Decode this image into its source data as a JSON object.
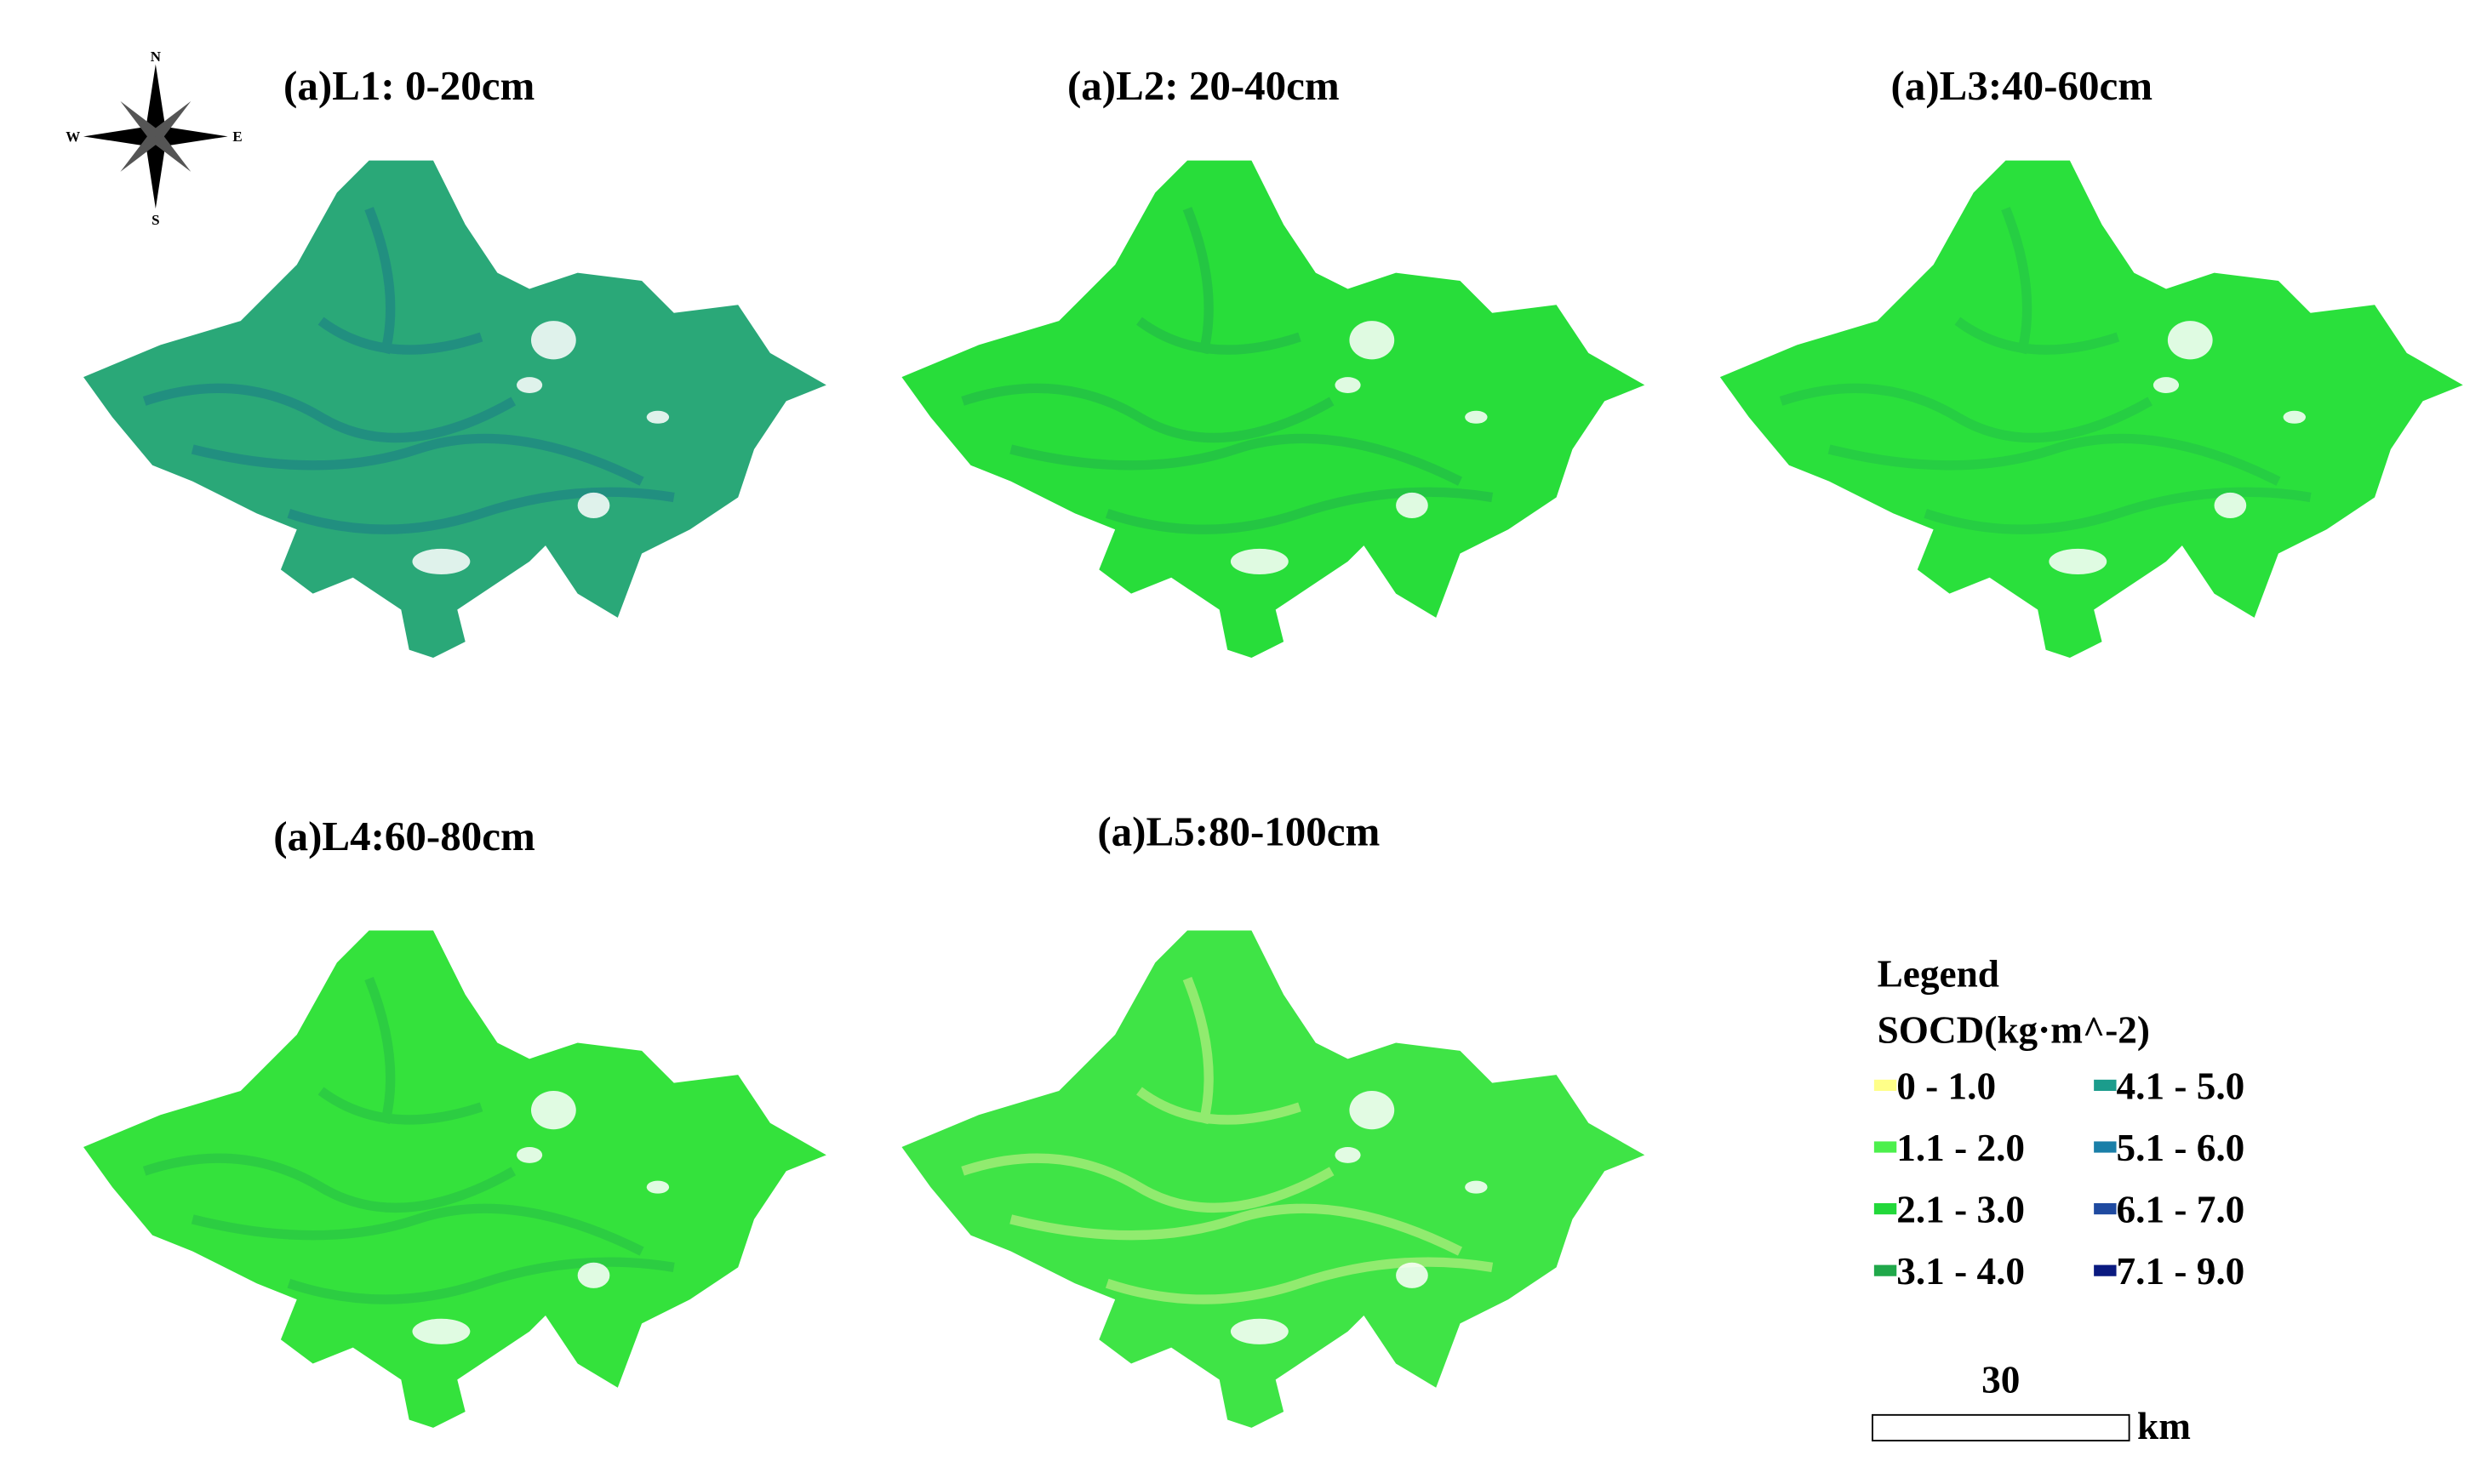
{
  "panels": [
    {
      "title": "(a)L1: 0-20cm",
      "color": "#2aa878",
      "shade": "#1d7f86"
    },
    {
      "title": "(a)L2: 20-40cm",
      "color": "#28dd3a",
      "shade": "#22b84a"
    },
    {
      "title": "(a)L3:40-60cm",
      "color": "#2ae03c",
      "shade": "#24c248"
    },
    {
      "title": "(a)L4:60-80cm",
      "color": "#34e23c",
      "shade": "#28c046"
    },
    {
      "title": "(a)L5:80-100cm",
      "color": "#3fe446",
      "shade": "#c8f08a"
    }
  ],
  "compass": {
    "n": "N",
    "e": "E",
    "s": "S",
    "w": "W"
  },
  "legend": {
    "title": "Legend",
    "subtitle": "SOCD(kg·m^-2)",
    "classes": [
      {
        "label": "0 - 1.0",
        "color": "#ffff88"
      },
      {
        "label": "1.1 - 2.0",
        "color": "#4cf04c"
      },
      {
        "label": "2.1 - 3.0",
        "color": "#22d83a"
      },
      {
        "label": "3.1 - 4.0",
        "color": "#20a84a"
      },
      {
        "label": "4.1 - 5.0",
        "color": "#1b9c8c"
      },
      {
        "label": "5.1 - 6.0",
        "color": "#1a7fa8"
      },
      {
        "label": "6.1 - 7.0",
        "color": "#1f4aa0"
      },
      {
        "label": "7.1 - 9.0",
        "color": "#0a1a80"
      }
    ]
  },
  "scale_bar": {
    "value": "30",
    "unit": "km"
  }
}
